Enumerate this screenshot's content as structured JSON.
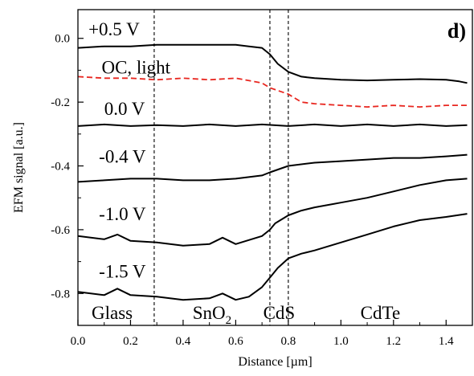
{
  "chart_data": {
    "type": "line",
    "panel_label": "d)",
    "xlabel": "Distance [µm]",
    "ylabel": "EFM signal [a.u.]",
    "xlim": [
      0.0,
      1.5
    ],
    "ylim": [
      -0.9,
      0.09
    ],
    "x_ticks": [
      "0.0",
      "0.2",
      "0.4",
      "0.6",
      "0.8",
      "1.0",
      "1.2",
      "1.4"
    ],
    "y_ticks": [
      "0.0",
      "-0.2",
      "-0.4",
      "-0.6",
      "-0.8"
    ],
    "grid": false,
    "boundaries_x": [
      0.29,
      0.73,
      0.8
    ],
    "region_labels": [
      {
        "text": "Glass",
        "x": 0.13
      },
      {
        "text": "SnO",
        "sub": "2",
        "x": 0.51
      },
      {
        "text": "CdS",
        "x": 0.765
      },
      {
        "text": "CdTe",
        "x": 1.15
      }
    ],
    "series": [
      {
        "name": "+0.5 V",
        "color": "#000000",
        "dashed": false,
        "x": [
          0.0,
          0.1,
          0.2,
          0.3,
          0.4,
          0.5,
          0.6,
          0.65,
          0.7,
          0.73,
          0.76,
          0.8,
          0.85,
          0.9,
          1.0,
          1.1,
          1.2,
          1.3,
          1.4,
          1.45,
          1.48
        ],
        "y": [
          -0.03,
          -0.025,
          -0.025,
          -0.02,
          -0.02,
          -0.02,
          -0.02,
          -0.025,
          -0.03,
          -0.05,
          -0.08,
          -0.105,
          -0.12,
          -0.125,
          -0.13,
          -0.132,
          -0.13,
          -0.128,
          -0.13,
          -0.135,
          -0.14
        ]
      },
      {
        "name": "OC, light",
        "color": "#e8261f",
        "dashed": true,
        "x": [
          0.0,
          0.1,
          0.2,
          0.3,
          0.4,
          0.5,
          0.6,
          0.7,
          0.73,
          0.8,
          0.85,
          0.9,
          1.0,
          1.1,
          1.2,
          1.3,
          1.4,
          1.48
        ],
        "y": [
          -0.12,
          -0.125,
          -0.125,
          -0.13,
          -0.125,
          -0.13,
          -0.125,
          -0.14,
          -0.155,
          -0.175,
          -0.2,
          -0.205,
          -0.21,
          -0.215,
          -0.21,
          -0.215,
          -0.21,
          -0.21
        ]
      },
      {
        "name": "0.0 V",
        "color": "#000000",
        "dashed": false,
        "x": [
          0.0,
          0.1,
          0.2,
          0.3,
          0.4,
          0.5,
          0.6,
          0.7,
          0.8,
          0.9,
          1.0,
          1.1,
          1.2,
          1.3,
          1.4,
          1.48
        ],
        "y": [
          -0.275,
          -0.27,
          -0.275,
          -0.272,
          -0.275,
          -0.27,
          -0.275,
          -0.27,
          -0.275,
          -0.27,
          -0.275,
          -0.27,
          -0.275,
          -0.27,
          -0.275,
          -0.272
        ]
      },
      {
        "name": "-0.4 V",
        "color": "#000000",
        "dashed": false,
        "x": [
          0.0,
          0.1,
          0.2,
          0.3,
          0.4,
          0.5,
          0.6,
          0.7,
          0.73,
          0.8,
          0.9,
          1.0,
          1.1,
          1.2,
          1.3,
          1.4,
          1.48
        ],
        "y": [
          -0.45,
          -0.445,
          -0.44,
          -0.44,
          -0.445,
          -0.445,
          -0.44,
          -0.43,
          -0.42,
          -0.4,
          -0.39,
          -0.385,
          -0.38,
          -0.375,
          -0.375,
          -0.37,
          -0.365
        ]
      },
      {
        "name": "-1.0 V",
        "color": "#000000",
        "dashed": false,
        "x": [
          0.0,
          0.1,
          0.15,
          0.2,
          0.3,
          0.4,
          0.5,
          0.55,
          0.6,
          0.7,
          0.73,
          0.75,
          0.8,
          0.85,
          0.9,
          1.0,
          1.1,
          1.2,
          1.3,
          1.4,
          1.48
        ],
        "y": [
          -0.62,
          -0.63,
          -0.615,
          -0.635,
          -0.64,
          -0.65,
          -0.645,
          -0.625,
          -0.645,
          -0.62,
          -0.6,
          -0.58,
          -0.555,
          -0.54,
          -0.53,
          -0.515,
          -0.5,
          -0.48,
          -0.46,
          -0.445,
          -0.44
        ]
      },
      {
        "name": "-1.5 V",
        "color": "#000000",
        "dashed": false,
        "x": [
          0.0,
          0.1,
          0.15,
          0.2,
          0.3,
          0.4,
          0.5,
          0.55,
          0.6,
          0.65,
          0.7,
          0.73,
          0.76,
          0.8,
          0.85,
          0.9,
          1.0,
          1.1,
          1.2,
          1.3,
          1.4,
          1.48
        ],
        "y": [
          -0.795,
          -0.805,
          -0.785,
          -0.805,
          -0.81,
          -0.82,
          -0.815,
          -0.8,
          -0.82,
          -0.81,
          -0.78,
          -0.75,
          -0.72,
          -0.69,
          -0.675,
          -0.665,
          -0.64,
          -0.615,
          -0.59,
          -0.57,
          -0.56,
          -0.55
        ]
      }
    ],
    "series_labels": [
      {
        "text": "+0.5 V",
        "x": 0.04,
        "y": 0.01
      },
      {
        "text": "OC,  light",
        "x": 0.09,
        "y": -0.11
      },
      {
        "text": "0.0 V",
        "x": 0.1,
        "y": -0.24
      },
      {
        "text": "-0.4 V",
        "x": 0.08,
        "y": -0.39
      },
      {
        "text": "-1.0 V",
        "x": 0.08,
        "y": -0.57
      },
      {
        "text": "-1.5 V",
        "x": 0.08,
        "y": -0.75
      }
    ]
  }
}
